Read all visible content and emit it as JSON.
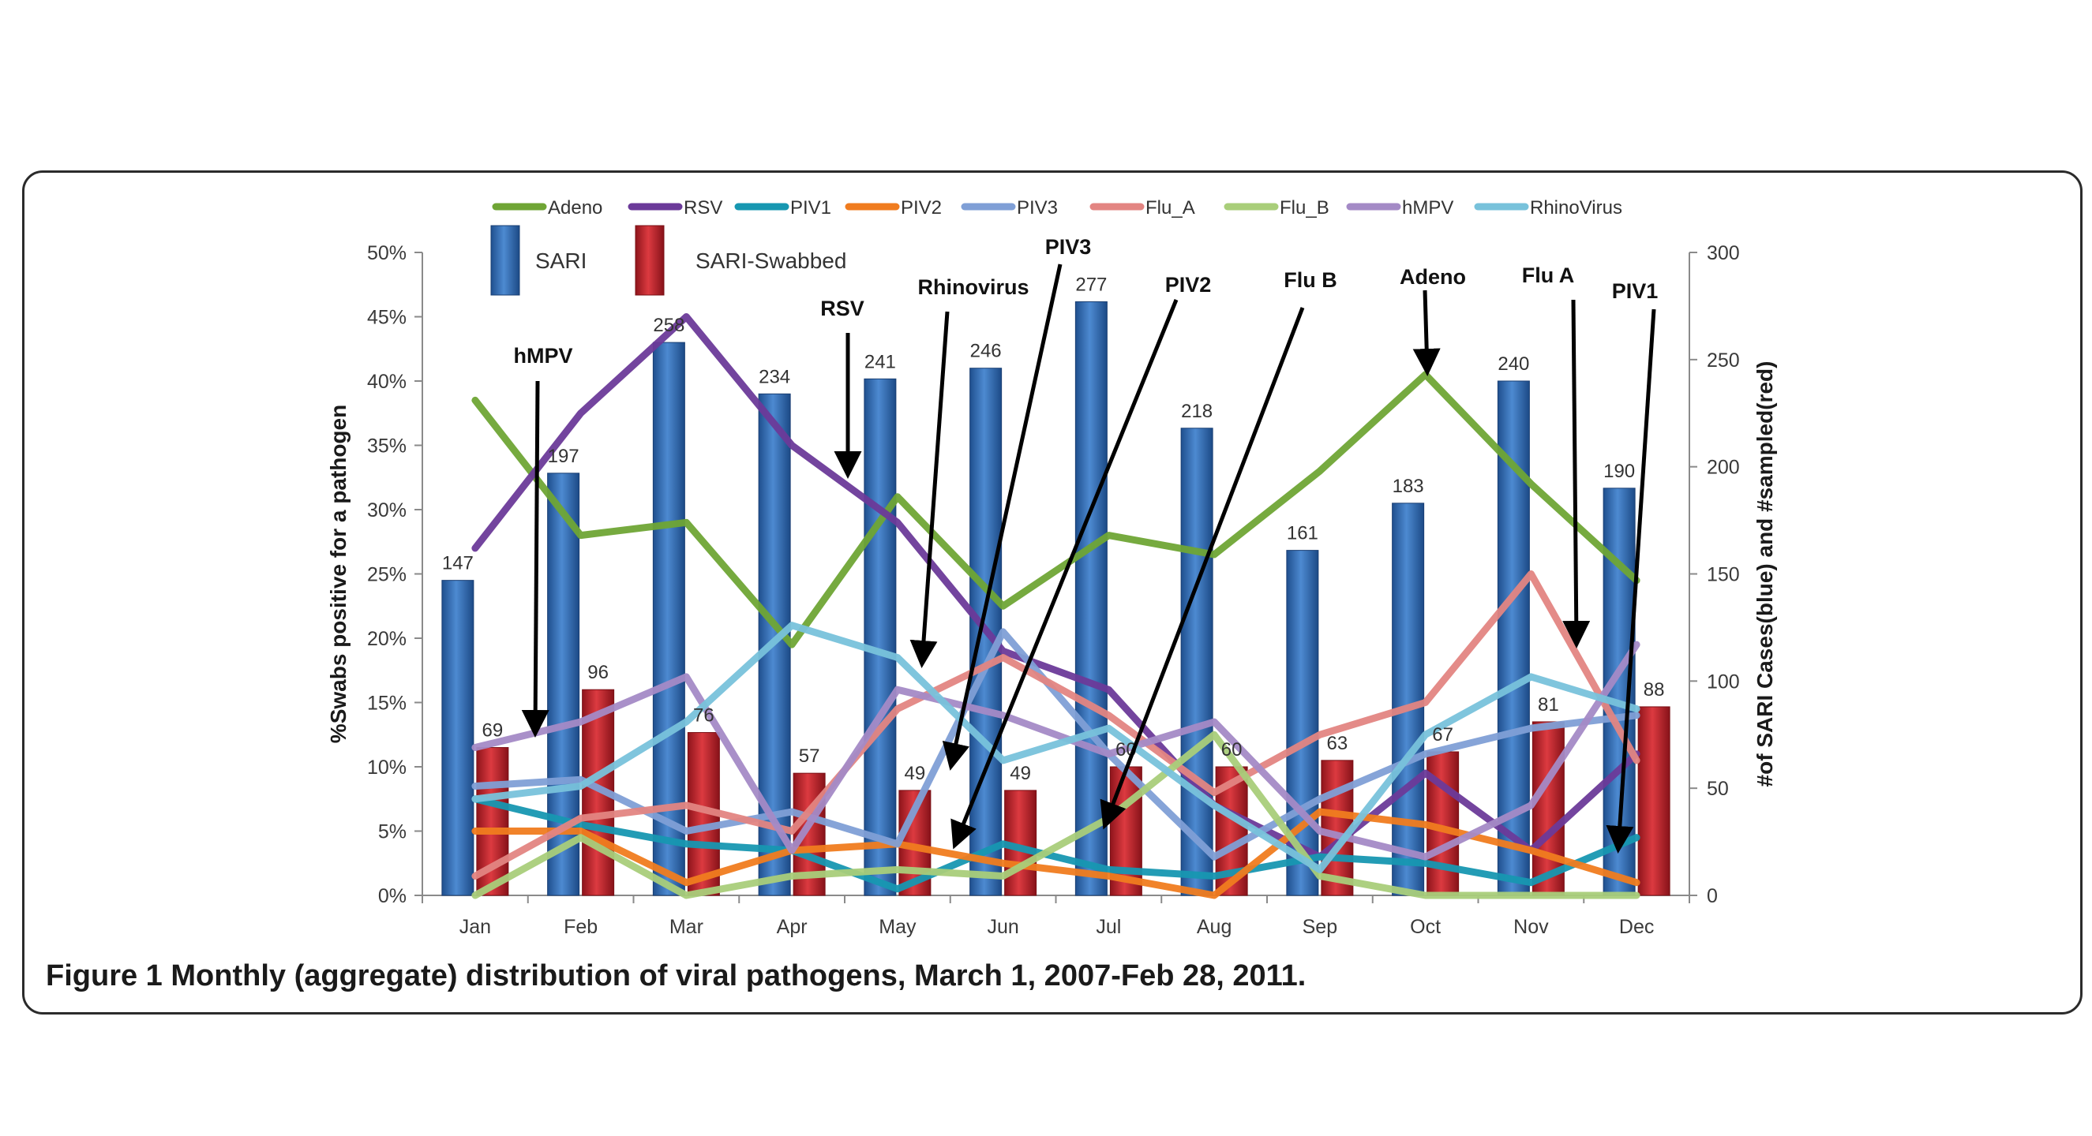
{
  "chart_data": {
    "type": "bar",
    "categories": [
      "Jan",
      "Feb",
      "Mar",
      "Apr",
      "May",
      "Jun",
      "Jul",
      "Aug",
      "Sep",
      "Oct",
      "Nov",
      "Dec"
    ],
    "bar_series": [
      {
        "name": "SARI",
        "color": "#2f6db5",
        "values": [
          147,
          197,
          258,
          234,
          241,
          246,
          277,
          218,
          161,
          183,
          240,
          190
        ]
      },
      {
        "name": "SARI-Swabbed",
        "color": "#c0202a",
        "values": [
          69,
          96,
          76,
          57,
          49,
          49,
          60,
          60,
          63,
          67,
          81,
          88
        ]
      }
    ],
    "line_series": [
      {
        "name": "Adeno",
        "color": "#6fa535",
        "values": [
          38.5,
          28,
          29,
          19.5,
          31,
          22.5,
          28,
          26.5,
          33,
          40.5,
          32,
          24.5
        ]
      },
      {
        "name": "RSV",
        "color": "#6b3a99",
        "values": [
          27,
          37.5,
          45,
          35,
          29,
          19,
          16,
          7,
          3,
          9.5,
          3.5,
          11
        ]
      },
      {
        "name": "PIV1",
        "color": "#1797b1",
        "values": [
          7.5,
          5.5,
          4,
          3.5,
          0.5,
          4,
          2,
          1.5,
          3,
          2.5,
          1,
          4.5
        ]
      },
      {
        "name": "PIV2",
        "color": "#f07c1f",
        "values": [
          5,
          5,
          1,
          3.5,
          4,
          2.5,
          1.5,
          0,
          6.5,
          5.5,
          3.5,
          1
        ]
      },
      {
        "name": "PIV3",
        "color": "#7f9fd6",
        "values": [
          8.5,
          9,
          5,
          6.5,
          4,
          20.5,
          11,
          3,
          7.5,
          11,
          13,
          14
        ]
      },
      {
        "name": "Flu_A",
        "color": "#e38582",
        "values": [
          1.5,
          6,
          7,
          5,
          14.5,
          18.5,
          14,
          8,
          12.5,
          15,
          25,
          10.5
        ]
      },
      {
        "name": "Flu_B",
        "color": "#a9ce7a",
        "values": [
          0,
          4.5,
          0,
          1.5,
          2,
          1.5,
          6,
          12.5,
          1.5,
          0,
          0,
          0
        ]
      },
      {
        "name": "hMPV",
        "color": "#a48ac6",
        "values": [
          11.5,
          13.5,
          17,
          3.5,
          16,
          14,
          11,
          13.5,
          5,
          3,
          7,
          19.5
        ]
      },
      {
        "name": "RhinoVirus",
        "color": "#78c2db",
        "values": [
          7.5,
          8.5,
          13.5,
          21,
          18.5,
          10.5,
          13,
          7,
          2,
          12.5,
          17,
          14.5
        ]
      }
    ],
    "bar_labels": {
      "SARI": [
        "147",
        "197",
        "258",
        "234",
        "241",
        "246",
        "277",
        "218",
        "161",
        "183",
        "240",
        "190"
      ],
      "SARI-Swabbed": [
        "69",
        "96",
        "76",
        "57",
        "49",
        "49",
        "60",
        "60",
        "63",
        "67",
        "81",
        "88"
      ]
    },
    "y_left": {
      "min": 0,
      "max": 50,
      "step": 5,
      "tick_labels": [
        "0%",
        "5%",
        "10%",
        "15%",
        "20%",
        "25%",
        "30%",
        "35%",
        "40%",
        "45%",
        "50%"
      ],
      "label": "%Swabs positive for a pathogen"
    },
    "y_right": {
      "min": 0,
      "max": 300,
      "step": 50,
      "tick_labels": [
        "0",
        "50",
        "100",
        "150",
        "200",
        "250",
        "300"
      ],
      "label": "#of SARI Cases(blue) and #sampled(red)"
    },
    "annotations": [
      {
        "text": "hMPV",
        "month": "Jan"
      },
      {
        "text": "RSV",
        "month": "Apr"
      },
      {
        "text": "Rhinovirus",
        "month": "May"
      },
      {
        "text": "PIV3",
        "month": "Jun"
      },
      {
        "text": "PIV2",
        "month": "Jun"
      },
      {
        "text": "Flu B",
        "month": "Jul"
      },
      {
        "text": "Adeno",
        "month": "Oct"
      },
      {
        "text": "Flu A",
        "month": "Nov"
      },
      {
        "text": "PIV1",
        "month": "Dec"
      }
    ],
    "grid": false,
    "legend_position": "top"
  },
  "caption": {
    "label": "Figure 1",
    "text": "Monthly (aggregate) distribution of viral pathogens, March 1, 2007-Feb 28, 2011."
  }
}
